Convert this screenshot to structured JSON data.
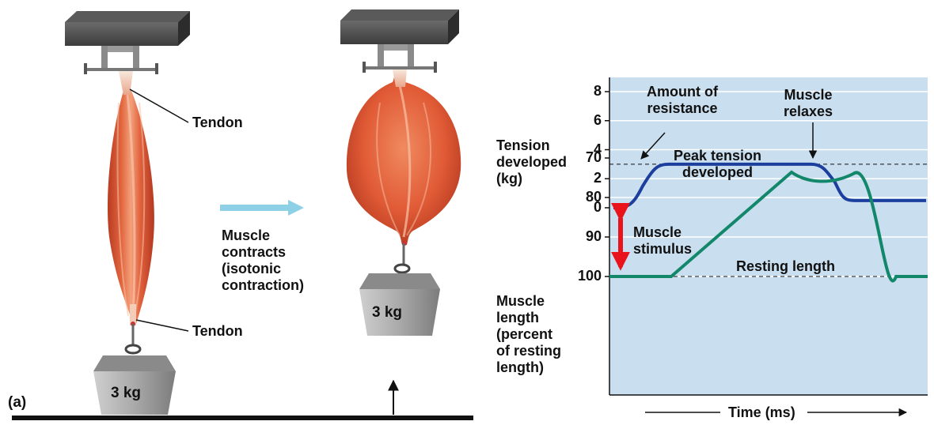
{
  "panel_label": "(a)",
  "left_diagram": {
    "tendon_top": "Tendon",
    "tendon_bottom": "Tendon",
    "weight_before": "3 kg",
    "weight_after": "3 kg",
    "action_lines": [
      "Muscle",
      "contracts",
      "(isotonic",
      "contraction)"
    ]
  },
  "chart_data": {
    "type": "line",
    "tension_axis": {
      "label_lines": [
        "Tension",
        "developed",
        "(kg)"
      ],
      "ticks": [
        "0",
        "2",
        "4",
        "6",
        "8"
      ],
      "range": [
        0,
        9
      ]
    },
    "length_axis": {
      "label_lines": [
        "Muscle",
        "length",
        "(percent",
        "of resting",
        "length)"
      ],
      "ticks": [
        "70",
        "80",
        "90",
        "100"
      ],
      "range": [
        70,
        100
      ]
    },
    "xlabel": "Time (ms)",
    "annotations": {
      "resistance": [
        "Amount of",
        "resistance"
      ],
      "relaxes": [
        "Muscle",
        "relaxes"
      ],
      "peak": [
        "Peak tension",
        "developed"
      ],
      "stimulus": [
        "Muscle",
        "stimulus"
      ],
      "resting": "Resting length"
    },
    "series": [
      {
        "colors": "#1c3f9e",
        "kind": "tension",
        "peak_value": 3,
        "final_value": 0.5
      },
      {
        "colors": "#12876a",
        "kind": "length",
        "min_value": 76
      }
    ],
    "dashed_reference": {
      "tension": 3,
      "length": 100
    },
    "grid": true,
    "panel_color": "#c9dff0"
  }
}
